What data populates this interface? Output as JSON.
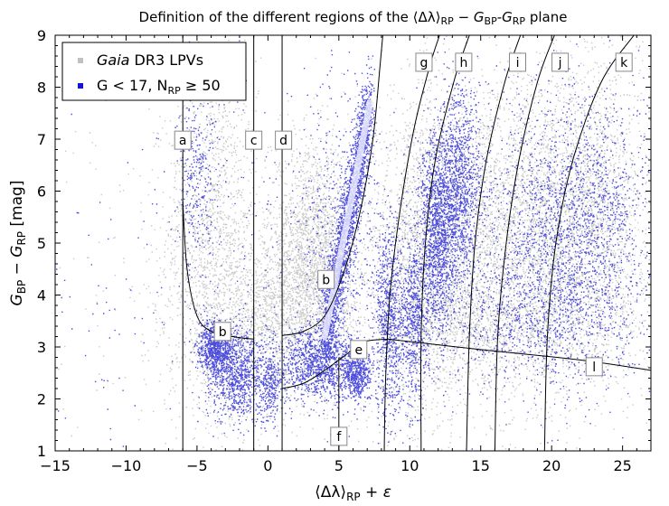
{
  "chart_data": {
    "type": "scatter",
    "title": "Definition of the different regions of the ⟨Δλ⟩RP − GBP-GRP plane",
    "title_parts": {
      "prefix": "Definition of the different regions of the ",
      "expr": "⟨Δλ⟩",
      "sub1": "RP",
      "minus": " − ",
      "g": "G",
      "sub2": "BP",
      "dash": "-",
      "g2": "G",
      "sub3": "RP",
      "suffix": " plane"
    },
    "xlabel": "⟨Δλ⟩RP + ε",
    "xlabel_parts": {
      "main": "⟨Δλ⟩",
      "sub": "RP",
      "rest": " + ε"
    },
    "ylabel": "GBP − GRP [mag]",
    "ylabel_parts": {
      "g1": "G",
      "sub1": "BP",
      "minus": " − ",
      "g2": "G",
      "sub2": "RP",
      "unit": " [mag]"
    },
    "xlim": [
      -15,
      27
    ],
    "ylim": [
      1,
      9
    ],
    "xticks": [
      -15,
      -10,
      -5,
      0,
      5,
      10,
      15,
      20,
      25
    ],
    "xtick_labels": [
      "−15",
      "−10",
      "−5",
      "0",
      "5",
      "10",
      "15",
      "20",
      "25"
    ],
    "yticks": [
      1,
      2,
      3,
      4,
      5,
      6,
      7,
      8,
      9
    ],
    "ytick_labels": [
      "1",
      "2",
      "3",
      "4",
      "5",
      "6",
      "7",
      "8",
      "9"
    ],
    "legend": {
      "position": "top-left",
      "entries": [
        {
          "name": "Gaia DR3 LPVs",
          "italic_part": "Gaia",
          "rest": " DR3 LPVs",
          "color": "#c0c0c0"
        },
        {
          "name": "G < 17, NRP ≥ 50",
          "pre": "G < 17, N",
          "sub": "RP",
          "post": " ≥ 50",
          "color": "#1414d2"
        }
      ]
    },
    "series": [
      {
        "name": "Gaia DR3 LPVs",
        "color": "#c0c0c0",
        "clusters": [
          {
            "cx": -4.0,
            "cy": 5.2,
            "sx": 1.6,
            "sy": 1.7,
            "n": 1300
          },
          {
            "cx": 3.2,
            "cy": 5.0,
            "sx": 1.6,
            "sy": 1.0,
            "n": 1600
          },
          {
            "cx": 1.5,
            "cy": 3.7,
            "sx": 2.4,
            "sy": 0.7,
            "n": 1300
          },
          {
            "cx": 10.0,
            "cy": 4.6,
            "sx": 1.5,
            "sy": 1.7,
            "n": 1400
          },
          {
            "cx": 13.5,
            "cy": 5.0,
            "sx": 1.8,
            "sy": 1.6,
            "n": 1700
          },
          {
            "cx": 18.5,
            "cy": 5.2,
            "sx": 2.4,
            "sy": 1.5,
            "n": 2200
          },
          {
            "cx": 23.0,
            "cy": 5.5,
            "sx": 2.2,
            "sy": 1.6,
            "n": 1900
          },
          {
            "cx": 16.0,
            "cy": 3.4,
            "sx": 5.0,
            "sy": 0.5,
            "n": 1000
          },
          {
            "cx": -1.5,
            "cy": 3.0,
            "sx": 3.0,
            "sy": 1.0,
            "n": 700
          },
          {
            "cx": 0.0,
            "cy": 4.5,
            "sx": 10.0,
            "sy": 2.2,
            "n": 500
          }
        ]
      },
      {
        "name": "G < 17, NRP ≥ 50",
        "color": "#1414d2",
        "clusters": [
          {
            "cx": -3.8,
            "cy": 3.0,
            "sx": 0.6,
            "sy": 0.25,
            "n": 700
          },
          {
            "cx": -2.2,
            "cy": 2.5,
            "sx": 1.0,
            "sy": 0.45,
            "n": 900
          },
          {
            "cx": 0.2,
            "cy": 2.3,
            "sx": 0.4,
            "sy": 0.35,
            "n": 250
          },
          {
            "cx": 3.5,
            "cy": 2.7,
            "sx": 1.4,
            "sy": 0.35,
            "n": 1100
          },
          {
            "cx": 6.2,
            "cy": 2.5,
            "sx": 0.5,
            "sy": 0.25,
            "n": 500
          },
          {
            "cx": 8.5,
            "cy": 3.5,
            "sx": 0.5,
            "sy": 1.0,
            "n": 700
          },
          {
            "cx": 10.2,
            "cy": 3.5,
            "sx": 0.5,
            "sy": 0.8,
            "n": 600
          },
          {
            "cx": 12.0,
            "cy": 5.2,
            "sx": 0.7,
            "sy": 1.0,
            "n": 1400
          },
          {
            "cx": 13.5,
            "cy": 6.2,
            "sx": 0.8,
            "sy": 0.9,
            "n": 900
          },
          {
            "cx": 21.5,
            "cy": 5.5,
            "sx": 3.0,
            "sy": 1.2,
            "n": 1700
          },
          {
            "cx": 19.0,
            "cy": 3.6,
            "sx": 3.5,
            "sy": 0.7,
            "n": 900
          },
          {
            "cx": -5.0,
            "cy": 6.3,
            "sx": 0.7,
            "sy": 1.0,
            "n": 300
          },
          {
            "cx": 5.0,
            "cy": 5.5,
            "sx": 1.5,
            "sy": 1.5,
            "n": 350
          },
          {
            "cx": 5.0,
            "cy": 4.0,
            "sx": 14.0,
            "sy": 2.4,
            "n": 700
          }
        ],
        "ridge": {
          "from": [
            4.0,
            3.2
          ],
          "to": [
            7.2,
            7.7
          ],
          "width": 0.45,
          "n": 2200
        }
      }
    ],
    "boundaries": [
      {
        "id": "a",
        "kind": "vline",
        "x": -6.0
      },
      {
        "id": "c",
        "kind": "vline",
        "x": -1.0
      },
      {
        "id": "d",
        "kind": "vline",
        "x": 1.0
      },
      {
        "id": "f",
        "kind": "vline",
        "x": 5.0,
        "y_max": 2.8
      },
      {
        "id": "b-lower",
        "kind": "curve",
        "points": [
          [
            -6,
            5.8
          ],
          [
            -5.7,
            4.5
          ],
          [
            -5.0,
            3.6
          ],
          [
            -4.0,
            3.3
          ],
          [
            -2.5,
            3.2
          ],
          [
            -1.0,
            3.15
          ]
        ]
      },
      {
        "id": "b-upper",
        "kind": "curve",
        "points": [
          [
            1.0,
            3.22
          ],
          [
            2.5,
            3.3
          ],
          [
            4.0,
            3.6
          ],
          [
            5.3,
            4.4
          ],
          [
            6.5,
            5.6
          ],
          [
            7.4,
            7.0
          ],
          [
            7.9,
            8.4
          ],
          [
            8.1,
            9.0
          ]
        ]
      },
      {
        "id": "e",
        "kind": "curve",
        "points": [
          [
            1.0,
            2.2
          ],
          [
            2.5,
            2.3
          ],
          [
            4.0,
            2.55
          ],
          [
            5.5,
            2.85
          ],
          [
            6.8,
            3.1
          ],
          [
            8.5,
            3.15
          ]
        ]
      },
      {
        "id": "g",
        "kind": "curve",
        "points": [
          [
            8.2,
            1.0
          ],
          [
            8.3,
            2.4
          ],
          [
            8.6,
            4.0
          ],
          [
            9.3,
            5.6
          ],
          [
            10.3,
            7.2
          ],
          [
            11.4,
            8.4
          ],
          [
            12.1,
            9.0
          ]
        ]
      },
      {
        "id": "h",
        "kind": "curve",
        "points": [
          [
            10.8,
            1.0
          ],
          [
            10.8,
            3.2
          ],
          [
            11.1,
            5.0
          ],
          [
            11.8,
            6.6
          ],
          [
            13.1,
            8.1
          ],
          [
            14.2,
            9.0
          ]
        ]
      },
      {
        "id": "i",
        "kind": "curve",
        "points": [
          [
            14.0,
            1.0
          ],
          [
            14.2,
            3.2
          ],
          [
            14.6,
            5.0
          ],
          [
            15.4,
            6.6
          ],
          [
            16.7,
            8.1
          ],
          [
            17.8,
            9.0
          ]
        ]
      },
      {
        "id": "j",
        "kind": "curve",
        "points": [
          [
            16.0,
            1.0
          ],
          [
            16.2,
            3.2
          ],
          [
            16.8,
            5.0
          ],
          [
            17.7,
            6.6
          ],
          [
            19.0,
            8.1
          ],
          [
            20.2,
            9.0
          ]
        ]
      },
      {
        "id": "k",
        "kind": "curve",
        "points": [
          [
            19.5,
            1.0
          ],
          [
            19.7,
            3.2
          ],
          [
            20.3,
            5.0
          ],
          [
            21.5,
            6.6
          ],
          [
            23.5,
            8.1
          ],
          [
            25.8,
            9.0
          ]
        ]
      },
      {
        "id": "l",
        "kind": "curve",
        "points": [
          [
            8.5,
            3.15
          ],
          [
            15.0,
            2.95
          ],
          [
            22.0,
            2.75
          ],
          [
            27.0,
            2.55
          ]
        ]
      }
    ],
    "region_labels": [
      {
        "text": "a",
        "x": -6.0,
        "y": 6.98
      },
      {
        "text": "c",
        "x": -1.0,
        "y": 6.98
      },
      {
        "text": "d",
        "x": 1.1,
        "y": 6.98
      },
      {
        "text": "b",
        "x": -3.2,
        "y": 3.3
      },
      {
        "text": "b",
        "x": 4.1,
        "y": 4.3
      },
      {
        "text": "e",
        "x": 6.4,
        "y": 2.95
      },
      {
        "text": "f",
        "x": 5.0,
        "y": 1.28
      },
      {
        "text": "g",
        "x": 11.0,
        "y": 8.48
      },
      {
        "text": "h",
        "x": 13.8,
        "y": 8.48
      },
      {
        "text": "i",
        "x": 17.6,
        "y": 8.48
      },
      {
        "text": "j",
        "x": 20.6,
        "y": 8.48
      },
      {
        "text": "k",
        "x": 25.1,
        "y": 8.48
      },
      {
        "text": "l",
        "x": 23.0,
        "y": 2.62
      }
    ]
  }
}
